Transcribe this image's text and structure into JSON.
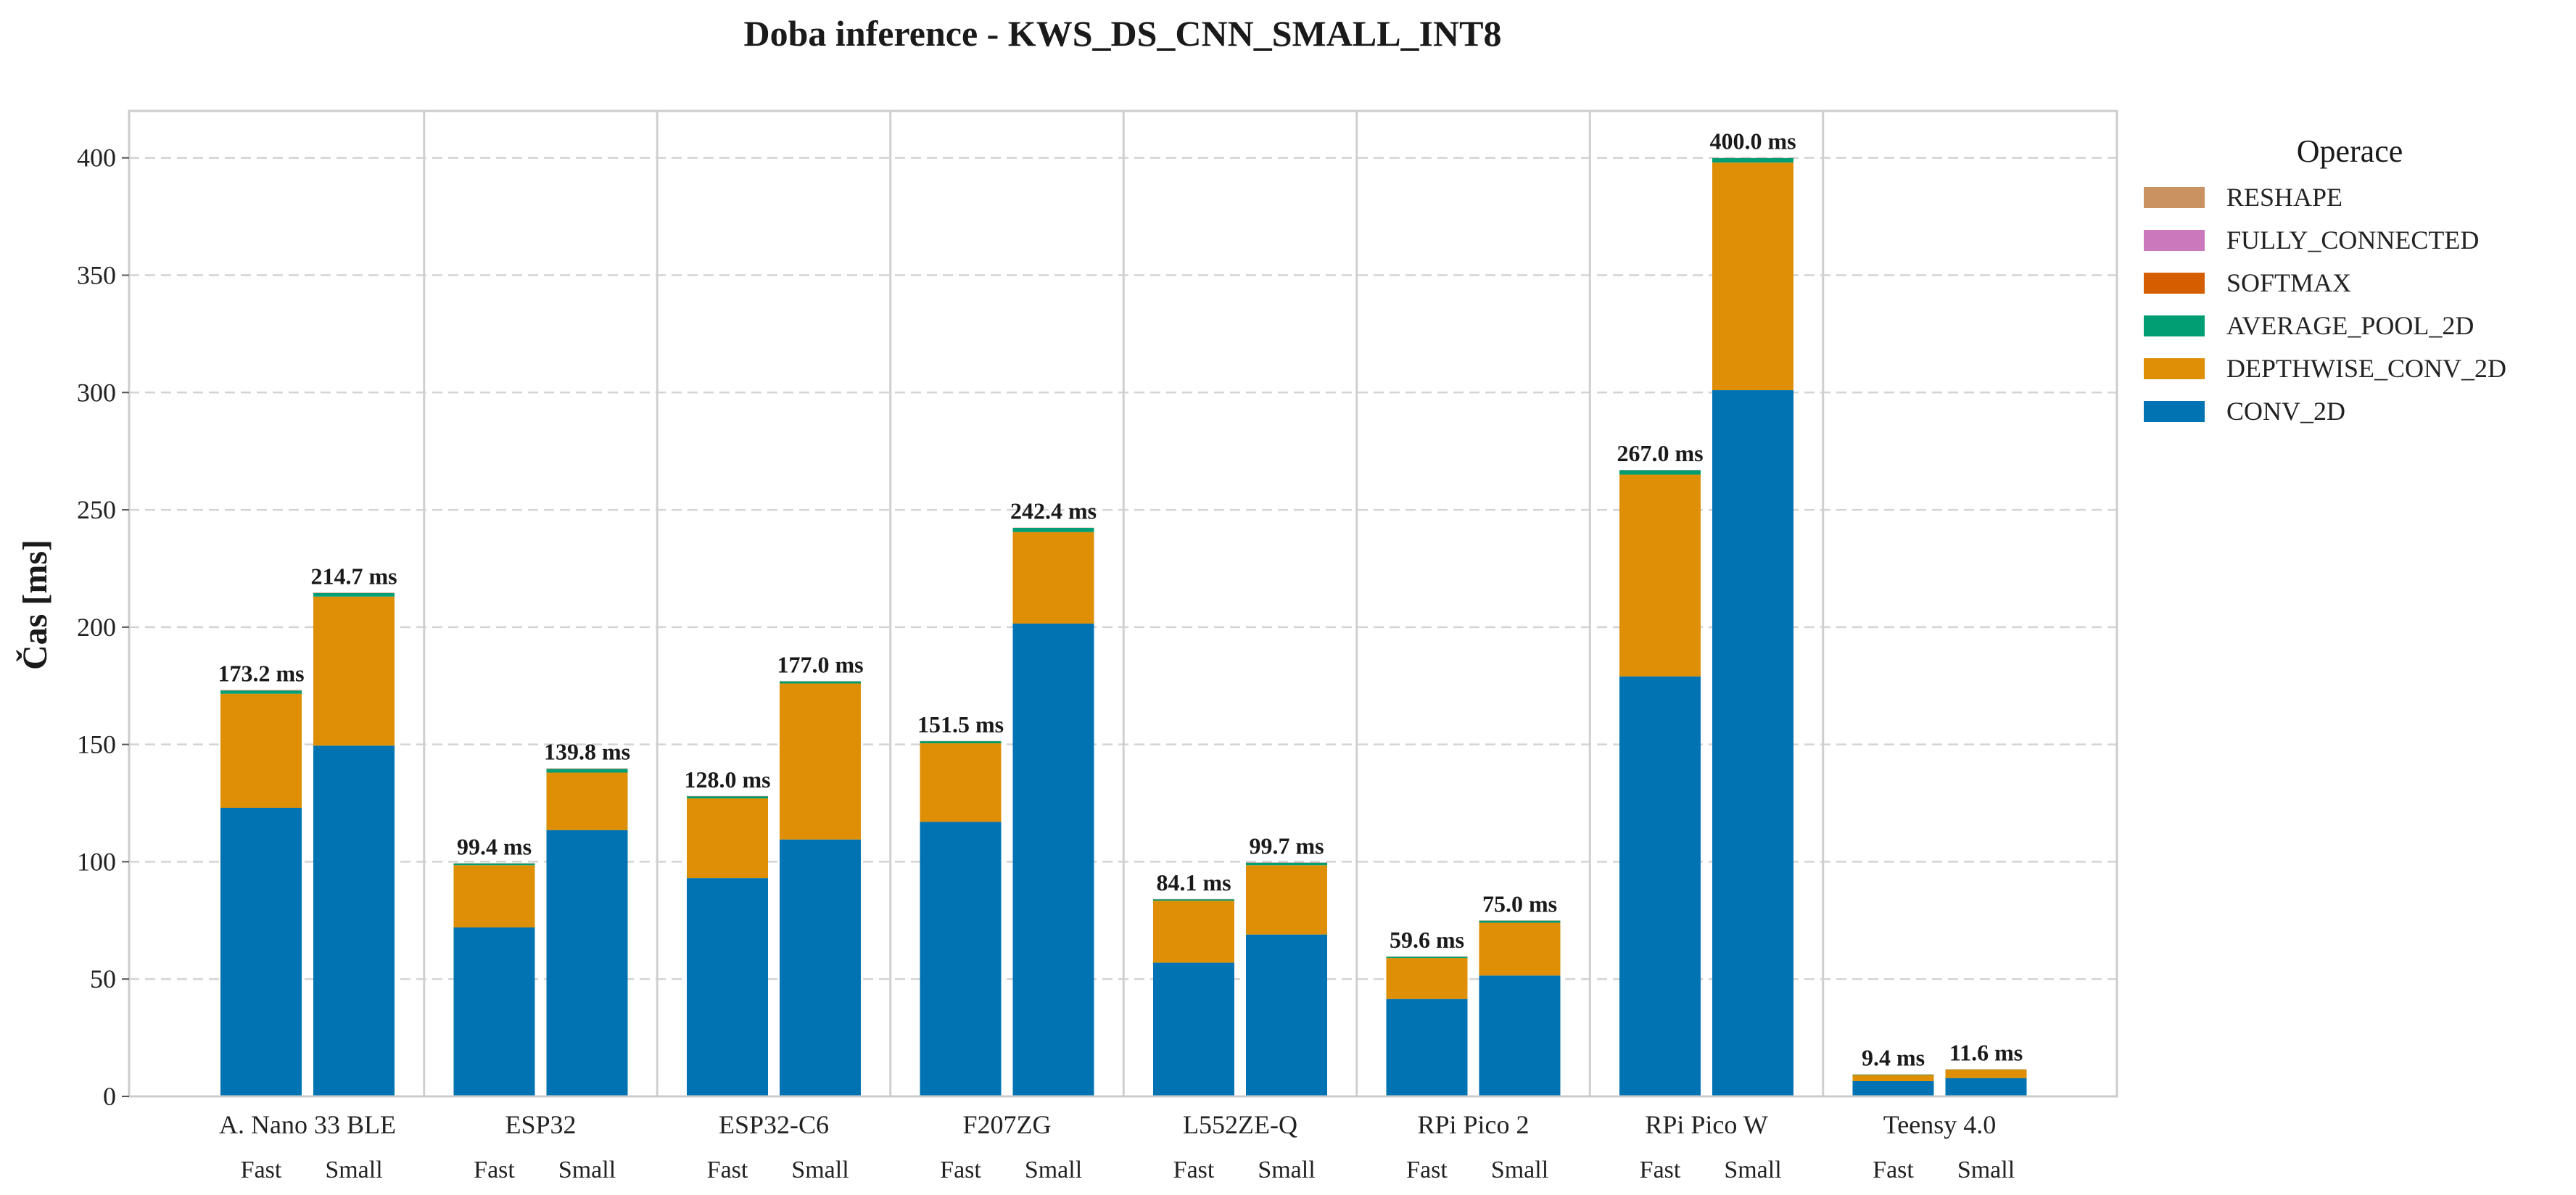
{
  "chart_data": {
    "type": "bar",
    "stacked": true,
    "title": "Doba inference - KWS_DS_CNN_SMALL_INT8",
    "xlabel": "",
    "ylabel": "Čas [ms]",
    "ylim": [
      0,
      420
    ],
    "yticks": [
      0,
      50,
      100,
      150,
      200,
      250,
      300,
      350,
      400
    ],
    "grid": "horizontal dashed",
    "legend_title": "Operace",
    "legend_position": "right",
    "groups": [
      "A. Nano 33 BLE",
      "ESP32",
      "ESP32-C6",
      "F207ZG",
      "L552ZE-Q",
      "RPi Pico 2",
      "RPi Pico W",
      "Teensy 4.0"
    ],
    "variants": [
      "Fast",
      "Small"
    ],
    "series": [
      {
        "name": "CONV_2D",
        "color": "#0173b2",
        "values": [
          123.0,
          149.5,
          72.0,
          113.5,
          93.0,
          109.5,
          117.0,
          201.5,
          57.0,
          69.0,
          41.5,
          51.5,
          179.0,
          301.0,
          6.5,
          7.8
        ]
      },
      {
        "name": "DEPTHWISE_CONV_2D",
        "color": "#de8f05",
        "values": [
          48.6,
          63.5,
          26.5,
          24.5,
          34.0,
          66.5,
          33.5,
          39.0,
          26.4,
          29.5,
          17.5,
          22.5,
          86.0,
          97.0,
          2.6,
          3.6
        ]
      },
      {
        "name": "AVERAGE_POOL_2D",
        "color": "#029e73",
        "values": [
          1.4,
          1.5,
          0.8,
          1.6,
          0.9,
          0.9,
          0.9,
          1.8,
          0.6,
          1.1,
          0.5,
          0.9,
          1.9,
          1.9,
          0.2,
          0.1
        ]
      },
      {
        "name": "SOFTMAX",
        "color": "#d55e00",
        "values": [
          0.1,
          0.1,
          0.05,
          0.1,
          0.05,
          0.05,
          0.05,
          0.05,
          0.05,
          0.05,
          0.05,
          0.05,
          0.05,
          0.05,
          0.05,
          0.05
        ]
      },
      {
        "name": "FULLY_CONNECTED",
        "color": "#cc78bc",
        "values": [
          0.05,
          0.05,
          0.03,
          0.05,
          0.03,
          0.03,
          0.03,
          0.03,
          0.03,
          0.03,
          0.03,
          0.03,
          0.03,
          0.03,
          0.03,
          0.03
        ]
      },
      {
        "name": "RESHAPE",
        "color": "#ca9161",
        "values": [
          0.05,
          0.05,
          0.02,
          0.05,
          0.02,
          0.02,
          0.02,
          0.02,
          0.02,
          0.02,
          0.02,
          0.02,
          0.02,
          0.02,
          0.02,
          0.02
        ]
      }
    ],
    "legend_order": [
      "RESHAPE",
      "FULLY_CONNECTED",
      "SOFTMAX",
      "AVERAGE_POOL_2D",
      "DEPTHWISE_CONV_2D",
      "CONV_2D"
    ],
    "totals_labels": [
      "173.2 ms",
      "214.7 ms",
      "99.4 ms",
      "139.8 ms",
      "128.0 ms",
      "177.0 ms",
      "151.5 ms",
      "242.4 ms",
      "84.1 ms",
      "99.7 ms",
      "59.6 ms",
      "75.0 ms",
      "267.0 ms",
      "400.0 ms",
      "9.4 ms",
      "11.6 ms"
    ],
    "totals": [
      173.2,
      214.7,
      99.4,
      139.8,
      128.0,
      177.0,
      151.5,
      242.4,
      84.1,
      99.7,
      59.6,
      75.0,
      267.0,
      400.0,
      9.4,
      11.6
    ]
  }
}
